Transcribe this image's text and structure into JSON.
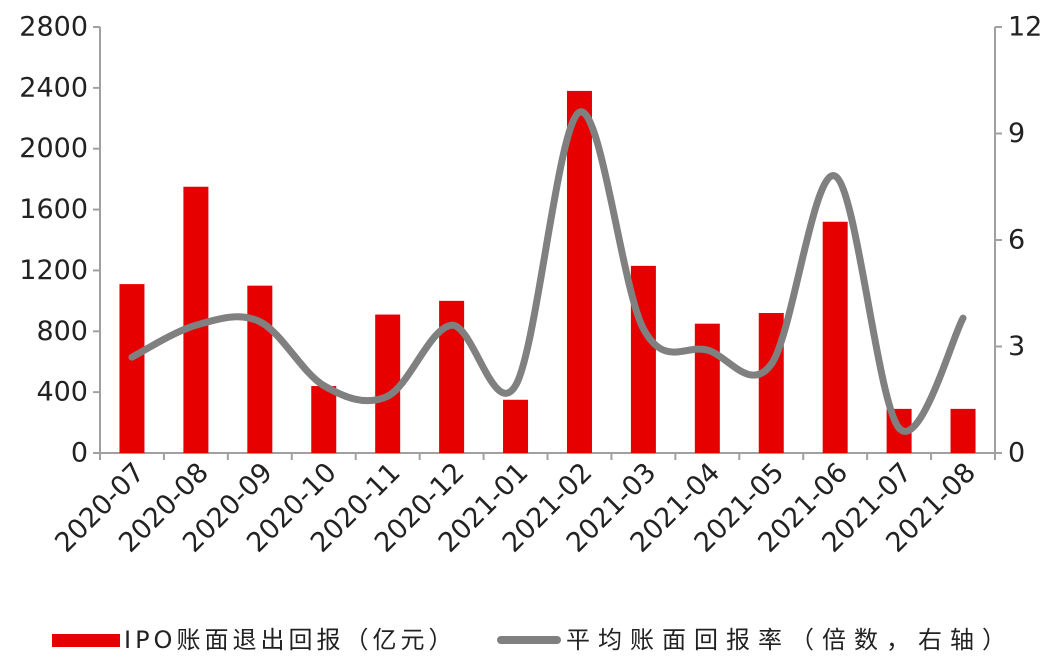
{
  "chart_data": {
    "type": "bar",
    "categories": [
      "2020-07",
      "2020-08",
      "2020-09",
      "2020-10",
      "2020-11",
      "2020-12",
      "2021-01",
      "2021-02",
      "2021-03",
      "2021-04",
      "2021-05",
      "2021-06",
      "2021-07",
      "2021-08"
    ],
    "series": [
      {
        "name": "IPO账面退出回报（亿元）",
        "type": "bar",
        "axis": "left",
        "color": "#e60000",
        "values": [
          1110,
          1750,
          1100,
          440,
          910,
          1000,
          350,
          2380,
          1230,
          850,
          920,
          1520,
          290,
          290
        ]
      },
      {
        "name": "平均账面回报率（倍数，右轴）",
        "type": "line",
        "axis": "right",
        "smooth": true,
        "color": "#808080",
        "values": [
          2.7,
          3.6,
          3.7,
          1.9,
          1.6,
          3.6,
          1.9,
          9.6,
          3.5,
          2.9,
          2.5,
          7.8,
          0.7,
          3.8
        ]
      }
    ],
    "y_left": {
      "range": [
        0,
        2800
      ],
      "ticks": [
        0,
        400,
        800,
        1200,
        1600,
        2000,
        2400,
        2800
      ]
    },
    "y_right": {
      "range": [
        0,
        12
      ],
      "ticks": [
        0,
        3,
        6,
        9,
        12
      ]
    },
    "grid": false,
    "legend_position": "bottom",
    "axis_color": "#a0a0a0"
  }
}
